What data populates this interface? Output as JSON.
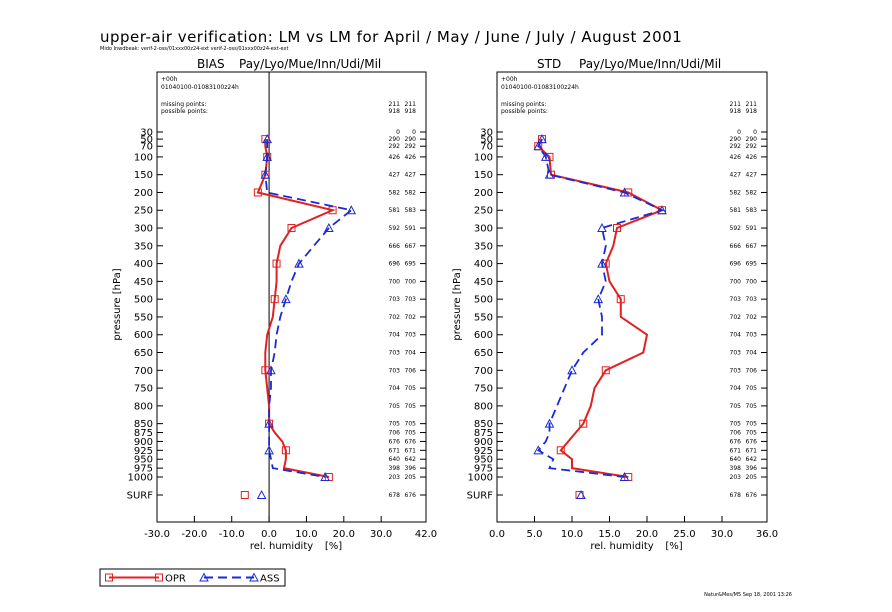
{
  "page": {
    "title": "upper-air verification: LM vs LM for April / May / June / July / August 2001",
    "subtitle": "Mido Inwdbeak: verif-2-oss/01xxx00z24-ext verif-2-oss/01xxx00z24-ext-ext",
    "credit": "Natur&Mes/M5 Sep 18, 2001 13:26"
  },
  "chart_data": [
    {
      "type": "line",
      "title": "BIAS",
      "subtitle": "Pay/Lyo/Mue/Inn/Udi/Mil",
      "xlabel": "rel. humidity",
      "xunit": "[%]",
      "ylabel": "pressure [hPa]",
      "xlim": [
        -30,
        42
      ],
      "xticks": [
        -30,
        -20,
        -10,
        0,
        10,
        20,
        30,
        42
      ],
      "xtick_labels": [
        "-30.0",
        "-20.0",
        "-10.0",
        "0.0",
        "10.0",
        "20.0",
        "30.0",
        "42.0"
      ],
      "zero_line": true,
      "info_lines": [
        "+00h",
        "01040100-01083100z24h"
      ],
      "missing_label": "missing points:",
      "possible_label": "possible points:",
      "missing": [
        "211",
        "211"
      ],
      "possible": [
        "918",
        "918"
      ],
      "levels": [
        "30",
        "50",
        "70",
        "100",
        "150",
        "200",
        "250",
        "300",
        "350",
        "400",
        "450",
        "500",
        "550",
        "600",
        "650",
        "700",
        "750",
        "800",
        "850",
        "875",
        "900",
        "925",
        "950",
        "975",
        "1000",
        "SURF"
      ],
      "counts": [
        [
          "0",
          "0"
        ],
        [
          "290",
          "290"
        ],
        [
          "292",
          "292"
        ],
        [
          "426",
          "426"
        ],
        [
          "427",
          "427"
        ],
        [
          "582",
          "582"
        ],
        [
          "581",
          "583"
        ],
        [
          "592",
          "591"
        ],
        [
          "666",
          "667"
        ],
        [
          "696",
          "695"
        ],
        [
          "700",
          "700"
        ],
        [
          "703",
          "703"
        ],
        [
          "702",
          "702"
        ],
        [
          "704",
          "703"
        ],
        [
          "703",
          "704"
        ],
        [
          "703",
          "706"
        ],
        [
          "704",
          "705"
        ],
        [
          "705",
          "705"
        ],
        [
          "705",
          "705"
        ],
        [
          "706",
          "705"
        ],
        [
          "676",
          "676"
        ],
        [
          "671",
          "671"
        ],
        [
          "640",
          "642"
        ],
        [
          "398",
          "396"
        ],
        [
          "203",
          "205"
        ],
        [
          "678",
          "676"
        ]
      ],
      "series": [
        {
          "name": "OPR",
          "color": "#e32020",
          "dash": "solid",
          "points": [
            [
              -1.0,
              50
            ],
            [
              -1.0,
              70
            ],
            [
              -0.5,
              100
            ],
            [
              -1.0,
              150
            ],
            [
              -3.0,
              200
            ],
            [
              17.0,
              250
            ],
            [
              6.0,
              300
            ],
            [
              3.0,
              350
            ],
            [
              2.0,
              400
            ],
            [
              2.0,
              450
            ],
            [
              1.5,
              500
            ],
            [
              1.0,
              550
            ],
            [
              -0.5,
              600
            ],
            [
              -1.0,
              650
            ],
            [
              -1.0,
              700
            ],
            [
              -0.5,
              750
            ],
            [
              0,
              800
            ],
            [
              0,
              850
            ],
            [
              1.5,
              875
            ],
            [
              3.5,
              900
            ],
            [
              4.5,
              925
            ],
            [
              4.5,
              950
            ],
            [
              4.0,
              975
            ],
            [
              16.0,
              1000
            ]
          ],
          "markers_at": [
            50,
            100,
            150,
            200,
            250,
            300,
            400,
            500,
            700,
            850,
            925,
            1000
          ],
          "surf": -6.5
        },
        {
          "name": "ASS",
          "color": "#1a2bd6",
          "dash": "dashed",
          "points": [
            [
              -0.5,
              50
            ],
            [
              -0.5,
              70
            ],
            [
              -0.5,
              100
            ],
            [
              -1.0,
              150
            ],
            [
              -0.5,
              200
            ],
            [
              22.0,
              250
            ],
            [
              16.0,
              300
            ],
            [
              12.0,
              350
            ],
            [
              8.0,
              400
            ],
            [
              6.0,
              450
            ],
            [
              4.5,
              500
            ],
            [
              3.0,
              550
            ],
            [
              2.0,
              600
            ],
            [
              1.5,
              650
            ],
            [
              0.5,
              700
            ],
            [
              0.5,
              750
            ],
            [
              0,
              800
            ],
            [
              0,
              850
            ],
            [
              0,
              875
            ],
            [
              0,
              900
            ],
            [
              0,
              925
            ],
            [
              0.5,
              950
            ],
            [
              1.0,
              975
            ],
            [
              15.0,
              1000
            ]
          ],
          "markers_at": [
            50,
            100,
            150,
            250,
            300,
            400,
            500,
            700,
            850,
            925,
            1000
          ],
          "surf": -2.0
        }
      ]
    },
    {
      "type": "line",
      "title": "STD",
      "subtitle": "Pay/Lyo/Mue/Inn/Udi/Mil",
      "xlabel": "rel. humidity",
      "xunit": "[%]",
      "ylabel": "pressure [hPa]",
      "xlim": [
        0,
        36
      ],
      "xticks": [
        0,
        5,
        10,
        15,
        20,
        25,
        30,
        36
      ],
      "xtick_labels": [
        "0.0",
        "5.0",
        "10.0",
        "15.0",
        "20.0",
        "25.0",
        "30.0",
        "36.0"
      ],
      "zero_line": false,
      "info_lines": [
        "+00h",
        "01040100-01083100z24h"
      ],
      "missing_label": "missing points:",
      "possible_label": "possible points:",
      "missing": [
        "211",
        "211"
      ],
      "possible": [
        "918",
        "918"
      ],
      "levels": [
        "30",
        "50",
        "70",
        "100",
        "150",
        "200",
        "250",
        "300",
        "350",
        "400",
        "450",
        "500",
        "550",
        "600",
        "650",
        "700",
        "750",
        "800",
        "850",
        "875",
        "900",
        "925",
        "950",
        "975",
        "1000",
        "SURF"
      ],
      "counts": [
        [
          "0",
          "0"
        ],
        [
          "290",
          "290"
        ],
        [
          "292",
          "292"
        ],
        [
          "426",
          "426"
        ],
        [
          "427",
          "427"
        ],
        [
          "582",
          "582"
        ],
        [
          "581",
          "583"
        ],
        [
          "592",
          "591"
        ],
        [
          "666",
          "667"
        ],
        [
          "696",
          "695"
        ],
        [
          "700",
          "700"
        ],
        [
          "703",
          "703"
        ],
        [
          "702",
          "702"
        ],
        [
          "704",
          "703"
        ],
        [
          "703",
          "704"
        ],
        [
          "703",
          "706"
        ],
        [
          "704",
          "705"
        ],
        [
          "705",
          "705"
        ],
        [
          "705",
          "705"
        ],
        [
          "706",
          "705"
        ],
        [
          "676",
          "676"
        ],
        [
          "671",
          "671"
        ],
        [
          "640",
          "642"
        ],
        [
          "398",
          "396"
        ],
        [
          "203",
          "205"
        ],
        [
          "678",
          "676"
        ]
      ],
      "series": [
        {
          "name": "OPR",
          "color": "#e32020",
          "dash": "solid",
          "points": [
            [
              6.0,
              50
            ],
            [
              5.5,
              70
            ],
            [
              7.0,
              100
            ],
            [
              7.2,
              150
            ],
            [
              17.5,
              200
            ],
            [
              22.0,
              250
            ],
            [
              16.0,
              300
            ],
            [
              15.5,
              350
            ],
            [
              14.5,
              400
            ],
            [
              15.0,
              450
            ],
            [
              16.5,
              500
            ],
            [
              16.5,
              550
            ],
            [
              20.0,
              600
            ],
            [
              19.5,
              650
            ],
            [
              14.5,
              700
            ],
            [
              13.0,
              750
            ],
            [
              12.5,
              800
            ],
            [
              11.5,
              850
            ],
            [
              10.5,
              875
            ],
            [
              9.5,
              900
            ],
            [
              8.5,
              925
            ],
            [
              10.0,
              950
            ],
            [
              10.0,
              975
            ],
            [
              17.5,
              1000
            ]
          ],
          "markers_at": [
            50,
            70,
            100,
            150,
            200,
            250,
            300,
            400,
            500,
            700,
            850,
            925,
            1000
          ],
          "surf": 11.0
        },
        {
          "name": "ASS",
          "color": "#1a2bd6",
          "dash": "dashed",
          "points": [
            [
              6.0,
              50
            ],
            [
              5.5,
              70
            ],
            [
              6.5,
              100
            ],
            [
              7.0,
              150
            ],
            [
              17.0,
              200
            ],
            [
              22.0,
              250
            ],
            [
              14.0,
              300
            ],
            [
              14.5,
              350
            ],
            [
              14.0,
              400
            ],
            [
              14.5,
              450
            ],
            [
              13.5,
              500
            ],
            [
              14.0,
              550
            ],
            [
              14.0,
              600
            ],
            [
              11.5,
              650
            ],
            [
              10.0,
              700
            ],
            [
              9.0,
              750
            ],
            [
              8.0,
              800
            ],
            [
              7.0,
              850
            ],
            [
              7.0,
              875
            ],
            [
              6.5,
              900
            ],
            [
              5.5,
              925
            ],
            [
              7.5,
              950
            ],
            [
              7.0,
              975
            ],
            [
              17.0,
              1000
            ]
          ],
          "markers_at": [
            50,
            70,
            100,
            150,
            200,
            250,
            300,
            400,
            500,
            700,
            850,
            925,
            1000
          ],
          "surf": 11.2
        }
      ]
    }
  ],
  "legend": {
    "items": [
      {
        "name": "OPR",
        "color": "#e32020",
        "dash": "solid",
        "marker": "square"
      },
      {
        "name": "ASS",
        "color": "#1a2bd6",
        "dash": "dashed",
        "marker": "triangle"
      }
    ]
  }
}
